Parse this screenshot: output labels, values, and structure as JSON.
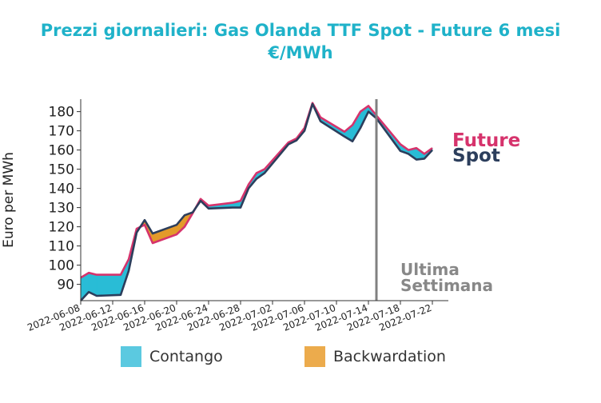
{
  "title_line1": "Prezzi giornalieri: Gas Olanda TTF Spot - Future 6 mesi",
  "title_line2": "€/MWh",
  "legend": {
    "contango_label": "Contango",
    "backwardation_label": "Backwardation"
  },
  "colors": {
    "title": "#1fb2c9",
    "future": "#d6336c",
    "spot": "#2c3e5c",
    "contango": "#29bcd6",
    "contango_legend": "#5bc9e0",
    "backwardation": "#e39a2a",
    "backwardation_legend": "#ecab4c",
    "marker": "#808080",
    "marker_text": "#888888"
  },
  "chart_data": {
    "type": "area",
    "title": "Prezzi giornalieri: Gas Olanda TTF Spot - Future 6 mesi €/MWh",
    "ylabel": "Euro per MWh",
    "xlabel": "",
    "ylim": [
      81.5,
      186.5
    ],
    "xlim": [
      "2022-06-08",
      "2022-07-24"
    ],
    "yticks": [
      90,
      100,
      110,
      120,
      130,
      140,
      150,
      160,
      170,
      180
    ],
    "xticks": [
      "2022-06-08",
      "2022-06-12",
      "2022-06-16",
      "2022-06-20",
      "2022-06-24",
      "2022-06-28",
      "2022-07-02",
      "2022-07-06",
      "2022-07-10",
      "2022-07-14",
      "2022-07-18",
      "2022-07-22"
    ],
    "grid": false,
    "x": [
      "2022-06-08",
      "2022-06-09",
      "2022-06-10",
      "2022-06-13",
      "2022-06-14",
      "2022-06-15",
      "2022-06-16",
      "2022-06-17",
      "2022-06-20",
      "2022-06-21",
      "2022-06-22",
      "2022-06-23",
      "2022-06-24",
      "2022-06-27",
      "2022-06-28",
      "2022-06-29",
      "2022-06-30",
      "2022-07-01",
      "2022-07-04",
      "2022-07-05",
      "2022-07-06",
      "2022-07-07",
      "2022-07-08",
      "2022-07-11",
      "2022-07-12",
      "2022-07-13",
      "2022-07-14",
      "2022-07-15",
      "2022-07-18",
      "2022-07-19",
      "2022-07-20",
      "2022-07-21",
      "2022-07-22"
    ],
    "series": [
      {
        "name": "Future",
        "values": [
          93.5,
          96.0,
          95.0,
          95.0,
          103.0,
          119.0,
          121.0,
          111.5,
          116.0,
          120.0,
          127.0,
          134.5,
          131.0,
          132.5,
          133.5,
          142.0,
          148.0,
          150.0,
          164.0,
          166.0,
          171.5,
          184.5,
          177.0,
          169.5,
          173.0,
          180.0,
          183.0,
          178.0,
          163.0,
          160.0,
          161.0,
          158.0,
          161.0
        ]
      },
      {
        "name": "Spot",
        "values": [
          81.5,
          86.0,
          84.0,
          84.5,
          97.0,
          117.0,
          123.5,
          116.5,
          121.0,
          126.0,
          127.5,
          133.5,
          129.5,
          130.0,
          130.0,
          140.0,
          145.0,
          148.0,
          163.0,
          165.0,
          170.0,
          184.0,
          175.0,
          167.0,
          164.5,
          171.5,
          180.0,
          176.5,
          159.5,
          158.0,
          155.0,
          155.5,
          160.0
        ]
      }
    ],
    "annotations": [
      {
        "text": "Future",
        "series": "Future"
      },
      {
        "text": "Spot",
        "series": "Spot"
      },
      {
        "text": "Ultima",
        "x": "2022-07-15"
      },
      {
        "text": "Settimana",
        "x": "2022-07-15"
      }
    ],
    "vertical_marker": {
      "x": "2022-07-15"
    },
    "legend_entries": [
      "Contango",
      "Backwardation"
    ],
    "legend_position": "bottom"
  }
}
